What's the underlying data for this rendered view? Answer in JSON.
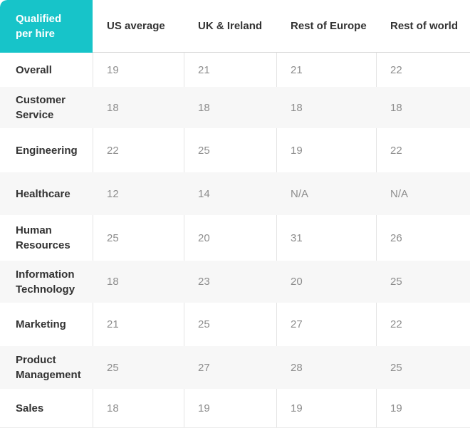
{
  "colors": {
    "accent_teal": "#17c4c9",
    "header_text": "#333333",
    "value_text": "#8d8d8d",
    "stripe_bg": "#f7f7f7",
    "divider": "#e4e4e4"
  },
  "chart_data": {
    "type": "table",
    "title": "Qualified per hire",
    "corner_label": "Qualified per hire",
    "columns": [
      "US average",
      "UK & Ireland",
      "Rest of Europe",
      "Rest of world"
    ],
    "rows": [
      {
        "label": "Overall",
        "values": [
          "19",
          "21",
          "21",
          "22"
        ]
      },
      {
        "label": "Customer Service",
        "values": [
          "18",
          "18",
          "18",
          "18"
        ]
      },
      {
        "label": "Engineering",
        "values": [
          "22",
          "25",
          "19",
          "22"
        ]
      },
      {
        "label": "Healthcare",
        "values": [
          "12",
          "14",
          "N/A",
          "N/A"
        ]
      },
      {
        "label": "Human Resources",
        "values": [
          "25",
          "20",
          "31",
          "26"
        ]
      },
      {
        "label": "Information Technology",
        "values": [
          "18",
          "23",
          "20",
          "25"
        ]
      },
      {
        "label": "Marketing",
        "values": [
          "21",
          "25",
          "27",
          "22"
        ]
      },
      {
        "label": "Product Management",
        "values": [
          "25",
          "27",
          "28",
          "25"
        ]
      },
      {
        "label": "Sales",
        "values": [
          "18",
          "19",
          "19",
          "19"
        ]
      }
    ]
  }
}
